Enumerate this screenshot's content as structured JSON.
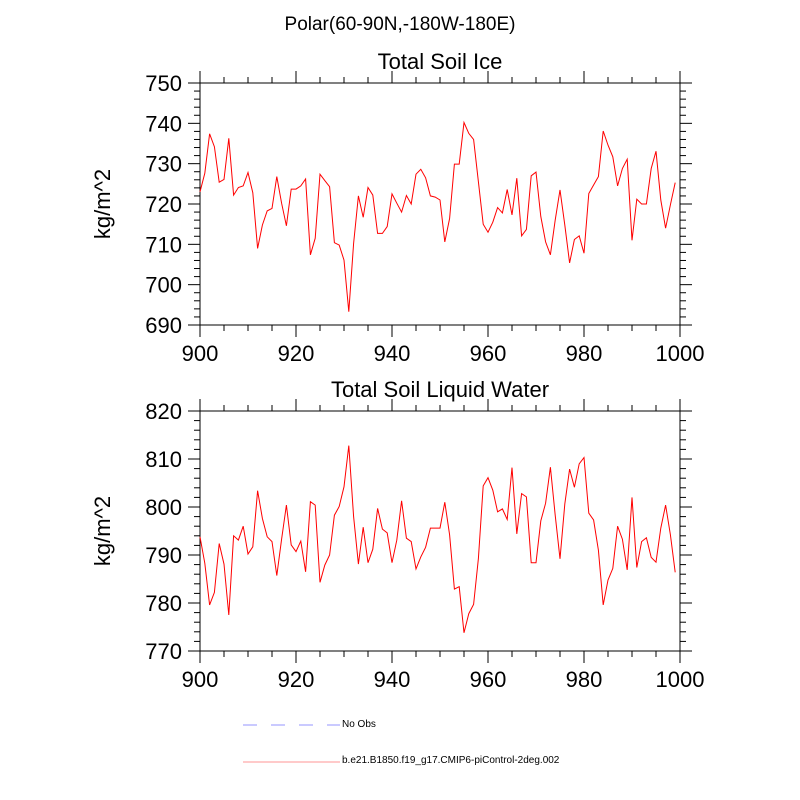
{
  "figure_title": "Polar(60-90N,-180W-180E)",
  "colors": {
    "model": "#ff0000",
    "obs": "#aaaaff",
    "model_legend": "#ffaaaa",
    "axis": "#000000"
  },
  "legend": [
    {
      "label": "No Obs",
      "style": "dashed",
      "color": "#aaaaff"
    },
    {
      "label": "b.e21.B1850.f19_g17.CMIP6-piControl-2deg.002",
      "style": "solid",
      "color": "#ffaaaa"
    }
  ],
  "chart_data": [
    {
      "type": "line",
      "title": "Total Soil Ice",
      "xlabel": "",
      "ylabel": "kg/m^2",
      "xlim": [
        900,
        1000
      ],
      "ylim": [
        690,
        750
      ],
      "xticks": [
        900,
        920,
        940,
        960,
        980,
        1000
      ],
      "yticks": [
        690,
        700,
        710,
        720,
        730,
        740,
        750
      ],
      "x_start": 900,
      "x_step": 1,
      "series": [
        {
          "name": "b.e21.B1850.f19_g17.CMIP6-piControl-2deg.002",
          "values": [
            723,
            727.6,
            737.4,
            734.2,
            725.4,
            726.1,
            736.3,
            722.2,
            724.1,
            724.5,
            727.8,
            722.8,
            709,
            714.8,
            718.3,
            718.9,
            726.8,
            720.2,
            714.6,
            723.7,
            723.7,
            724.5,
            726.2,
            707.4,
            711.5,
            727.4,
            725.8,
            724.3,
            710.4,
            709.8,
            706.1,
            693.3,
            710.2,
            722,
            716.7,
            724.1,
            722.2,
            712.7,
            712.7,
            714.4,
            722.5,
            720.2,
            718,
            722.1,
            720,
            727.4,
            728.6,
            726.5,
            722,
            721.7,
            721,
            710.6,
            716.4,
            729.9,
            729.9,
            740.2,
            737.5,
            736,
            725.5,
            715,
            713,
            715.5,
            719.1,
            717.8,
            723.6,
            717.3,
            726.4,
            712.1,
            713.7,
            727,
            727.9,
            716.9,
            710.6,
            707.4,
            716,
            723.5,
            714.8,
            705.4,
            711.2,
            712.1,
            707.8,
            722.6,
            724.7,
            726.8,
            738.1,
            734.6,
            731.7,
            724.5,
            728.8,
            731.1,
            711,
            721.2,
            720,
            720,
            728.8,
            733.1,
            721,
            714,
            719.8,
            725.3
          ]
        }
      ]
    },
    {
      "type": "line",
      "title": "Total Soil Liquid Water",
      "xlabel": "",
      "ylabel": "kg/m^2",
      "xlim": [
        900,
        1000
      ],
      "ylim": [
        770,
        820
      ],
      "xticks": [
        900,
        920,
        940,
        960,
        980,
        1000
      ],
      "yticks": [
        770,
        780,
        790,
        800,
        810,
        820
      ],
      "x_start": 900,
      "x_step": 1,
      "series": [
        {
          "name": "b.e21.B1850.f19_g17.CMIP6-piControl-2deg.002",
          "values": [
            793.8,
            788.3,
            779.6,
            782.2,
            792.4,
            788.1,
            777.5,
            794,
            793.1,
            796,
            790.2,
            791.7,
            803.4,
            797.6,
            793.8,
            792.8,
            785.7,
            793.3,
            800.4,
            792.1,
            790.7,
            792.9,
            786.5,
            801.1,
            800.4,
            784.3,
            787.9,
            790,
            798.3,
            800.1,
            804.2,
            812.8,
            798,
            788.1,
            795.8,
            788.4,
            791.2,
            799.7,
            795.4,
            794.6,
            788.4,
            793.1,
            801.3,
            793.5,
            792.8,
            787.1,
            789.6,
            791.6,
            795.6,
            795.6,
            795.6,
            801,
            794.2,
            782.9,
            783.4,
            773.8,
            777.8,
            779.7,
            789.3,
            804.4,
            806.1,
            803.5,
            799,
            799.6,
            797.4,
            808.2,
            794.4,
            802.8,
            802.1,
            788.4,
            788.4,
            797.1,
            800.8,
            808.3,
            798.3,
            789.2,
            800.6,
            807.9,
            804.1,
            809,
            810.3,
            798.7,
            797.3,
            791,
            779.6,
            784.8,
            787.2,
            796,
            793.3,
            786.9,
            802,
            787.4,
            792.8,
            793.6,
            789.5,
            788.5,
            795.6,
            800.4,
            794.2,
            786.4
          ]
        }
      ]
    }
  ]
}
